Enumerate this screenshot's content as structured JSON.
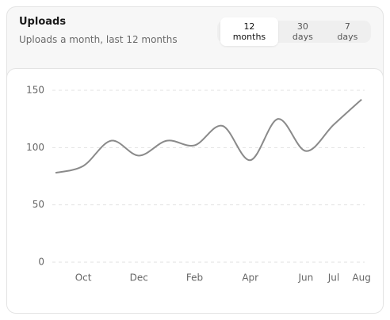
{
  "header": {
    "title": "Uploads",
    "subtitle": "Uploads a month, last 12 months"
  },
  "tabs": {
    "options": [
      "12 months",
      "30 days",
      "7 days"
    ],
    "selected_index": 0
  },
  "chart_data": {
    "type": "line",
    "categories": [
      null,
      "Oct",
      null,
      "Dec",
      null,
      "Feb",
      null,
      "Apr",
      null,
      "Jun",
      "Jul",
      "Aug"
    ],
    "values": [
      78,
      84,
      106,
      93,
      106,
      102,
      119,
      89,
      125,
      97,
      120,
      142
    ],
    "color": "#8a8a8a",
    "ylim": [
      0,
      150
    ],
    "yticks": [
      0,
      50,
      100,
      150
    ],
    "grid": true
  }
}
